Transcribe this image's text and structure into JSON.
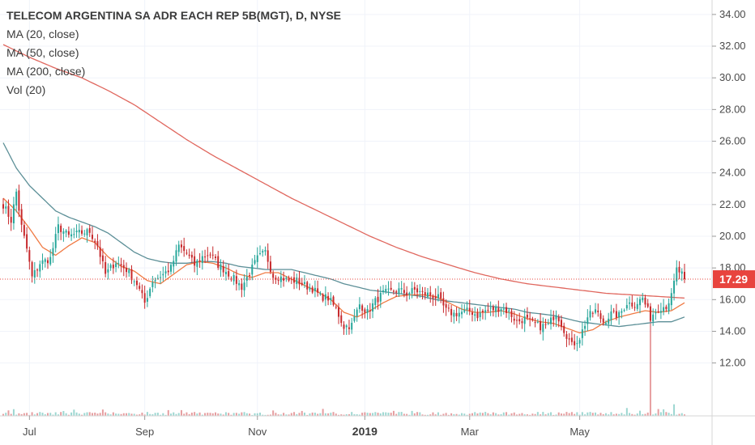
{
  "legend": {
    "title": "TELECOM ARGENTINA SA ADR EACH REP 5B(MGT), D, NYSE",
    "ma20": "MA (20, close)",
    "ma50": "MA (50, close)",
    "ma200": "MA (200, close)",
    "vol": "Vol (20)"
  },
  "colors": {
    "up": "#26a69a",
    "down": "#c7292c",
    "ma20": "#f07a43",
    "ma50": "#5c8f97",
    "ma200": "#e0675e",
    "price_tag": "#e8443e"
  },
  "chart_data": {
    "type": "candlestick",
    "y_ticks": [
      "12.00",
      "14.00",
      "16.00",
      "18.00",
      "20.00",
      "22.00",
      "24.00",
      "26.00",
      "28.00",
      "30.00",
      "32.00",
      "34.00"
    ],
    "ylim": [
      10.5,
      34.3
    ],
    "x_ticks": [
      {
        "label": "Jul",
        "i": 10,
        "bold": false
      },
      {
        "label": "Sep",
        "i": 54,
        "bold": false
      },
      {
        "label": "Nov",
        "i": 97,
        "bold": false
      },
      {
        "label": "2019",
        "i": 138,
        "bold": true
      },
      {
        "label": "Mar",
        "i": 178,
        "bold": false
      },
      {
        "label": "May",
        "i": 220,
        "bold": false
      }
    ],
    "last_price": "17.29",
    "last_price_value": 17.29,
    "price_anchors": [
      [
        0,
        22.0
      ],
      [
        3,
        21.0
      ],
      [
        5,
        22.8
      ],
      [
        7,
        20.6
      ],
      [
        9,
        19.2
      ],
      [
        11,
        17.4
      ],
      [
        14,
        18.3
      ],
      [
        18,
        18.6
      ],
      [
        21,
        20.6
      ],
      [
        25,
        20.0
      ],
      [
        29,
        20.2
      ],
      [
        33,
        20.3
      ],
      [
        36,
        19.4
      ],
      [
        39,
        17.6
      ],
      [
        43,
        18.4
      ],
      [
        47,
        17.9
      ],
      [
        51,
        17.0
      ],
      [
        54,
        15.8
      ],
      [
        57,
        17.2
      ],
      [
        61,
        17.6
      ],
      [
        64,
        18.0
      ],
      [
        67,
        19.4
      ],
      [
        70,
        18.9
      ],
      [
        73,
        18.2
      ],
      [
        76,
        18.7
      ],
      [
        79,
        18.9
      ],
      [
        82,
        18.2
      ],
      [
        85,
        17.8
      ],
      [
        88,
        17.3
      ],
      [
        91,
        16.8
      ],
      [
        94,
        17.7
      ],
      [
        97,
        18.6
      ],
      [
        100,
        19.0
      ],
      [
        103,
        17.5
      ],
      [
        106,
        17.4
      ],
      [
        109,
        17.2
      ],
      [
        112,
        17.2
      ],
      [
        115,
        16.9
      ],
      [
        118,
        16.7
      ],
      [
        121,
        16.2
      ],
      [
        124,
        16.1
      ],
      [
        127,
        15.4
      ],
      [
        130,
        14.3
      ],
      [
        133,
        14.4
      ],
      [
        136,
        15.7
      ],
      [
        139,
        15.2
      ],
      [
        142,
        15.9
      ],
      [
        145,
        16.4
      ],
      [
        148,
        16.5
      ],
      [
        151,
        16.6
      ],
      [
        154,
        16.4
      ],
      [
        157,
        16.6
      ],
      [
        160,
        16.4
      ],
      [
        163,
        16.3
      ],
      [
        166,
        16.1
      ],
      [
        169,
        15.3
      ],
      [
        172,
        15.1
      ],
      [
        175,
        15.2
      ],
      [
        178,
        15.3
      ],
      [
        181,
        15.0
      ],
      [
        184,
        15.3
      ],
      [
        187,
        15.4
      ],
      [
        190,
        15.5
      ],
      [
        193,
        15.2
      ],
      [
        196,
        14.6
      ],
      [
        199,
        14.8
      ],
      [
        202,
        14.5
      ],
      [
        205,
        14.3
      ],
      [
        208,
        14.4
      ],
      [
        211,
        15.2
      ],
      [
        214,
        14.1
      ],
      [
        217,
        13.1
      ],
      [
        220,
        13.6
      ],
      [
        223,
        14.9
      ],
      [
        226,
        15.3
      ],
      [
        229,
        14.6
      ],
      [
        232,
        15.1
      ],
      [
        235,
        15.0
      ],
      [
        238,
        15.8
      ],
      [
        241,
        15.7
      ],
      [
        244,
        16.1
      ],
      [
        247,
        14.9
      ],
      [
        250,
        15.5
      ],
      [
        253,
        15.6
      ],
      [
        255,
        16.2
      ],
      [
        257,
        17.9
      ],
      [
        259,
        17.6
      ],
      [
        260,
        17.29
      ]
    ],
    "ma20_anchors": [
      [
        0,
        22.4
      ],
      [
        5,
        21.6
      ],
      [
        10,
        20.5
      ],
      [
        15,
        19.3
      ],
      [
        20,
        18.8
      ],
      [
        25,
        19.4
      ],
      [
        30,
        19.9
      ],
      [
        35,
        19.6
      ],
      [
        40,
        18.7
      ],
      [
        45,
        18.1
      ],
      [
        50,
        17.8
      ],
      [
        55,
        17.2
      ],
      [
        60,
        17.0
      ],
      [
        65,
        17.6
      ],
      [
        70,
        18.2
      ],
      [
        75,
        18.4
      ],
      [
        80,
        18.3
      ],
      [
        85,
        18.0
      ],
      [
        90,
        17.6
      ],
      [
        95,
        17.4
      ],
      [
        100,
        17.7
      ],
      [
        105,
        17.7
      ],
      [
        110,
        17.3
      ],
      [
        115,
        16.9
      ],
      [
        120,
        16.5
      ],
      [
        125,
        16.0
      ],
      [
        130,
        15.2
      ],
      [
        135,
        14.9
      ],
      [
        140,
        15.3
      ],
      [
        145,
        15.8
      ],
      [
        150,
        16.2
      ],
      [
        155,
        16.3
      ],
      [
        160,
        16.3
      ],
      [
        165,
        16.2
      ],
      [
        170,
        15.8
      ],
      [
        175,
        15.4
      ],
      [
        180,
        15.2
      ],
      [
        185,
        15.2
      ],
      [
        190,
        15.3
      ],
      [
        195,
        15.1
      ],
      [
        200,
        14.8
      ],
      [
        205,
        14.6
      ],
      [
        210,
        14.5
      ],
      [
        215,
        14.2
      ],
      [
        220,
        13.9
      ],
      [
        225,
        14.1
      ],
      [
        230,
        14.6
      ],
      [
        235,
        14.9
      ],
      [
        240,
        15.1
      ],
      [
        245,
        15.3
      ],
      [
        250,
        15.2
      ],
      [
        255,
        15.3
      ],
      [
        260,
        15.8
      ]
    ],
    "ma50_anchors": [
      [
        0,
        25.9
      ],
      [
        5,
        24.3
      ],
      [
        10,
        23.2
      ],
      [
        15,
        22.4
      ],
      [
        20,
        21.6
      ],
      [
        25,
        21.2
      ],
      [
        30,
        20.9
      ],
      [
        35,
        20.6
      ],
      [
        40,
        20.2
      ],
      [
        45,
        19.6
      ],
      [
        50,
        19.0
      ],
      [
        55,
        18.6
      ],
      [
        60,
        18.4
      ],
      [
        65,
        18.3
      ],
      [
        70,
        18.3
      ],
      [
        75,
        18.4
      ],
      [
        80,
        18.4
      ],
      [
        85,
        18.3
      ],
      [
        90,
        18.1
      ],
      [
        95,
        18.0
      ],
      [
        100,
        17.9
      ],
      [
        105,
        17.9
      ],
      [
        110,
        17.9
      ],
      [
        115,
        17.7
      ],
      [
        120,
        17.5
      ],
      [
        125,
        17.3
      ],
      [
        130,
        17.0
      ],
      [
        135,
        16.8
      ],
      [
        140,
        16.6
      ],
      [
        145,
        16.5
      ],
      [
        150,
        16.4
      ],
      [
        155,
        16.3
      ],
      [
        160,
        16.2
      ],
      [
        165,
        16.0
      ],
      [
        170,
        15.9
      ],
      [
        175,
        15.8
      ],
      [
        180,
        15.7
      ],
      [
        185,
        15.6
      ],
      [
        190,
        15.5
      ],
      [
        195,
        15.4
      ],
      [
        200,
        15.2
      ],
      [
        205,
        15.1
      ],
      [
        210,
        15.0
      ],
      [
        215,
        14.8
      ],
      [
        220,
        14.6
      ],
      [
        225,
        14.5
      ],
      [
        230,
        14.4
      ],
      [
        235,
        14.3
      ],
      [
        240,
        14.4
      ],
      [
        245,
        14.5
      ],
      [
        250,
        14.6
      ],
      [
        255,
        14.6
      ],
      [
        260,
        14.9
      ]
    ],
    "ma200_anchors": [
      [
        0,
        32.1
      ],
      [
        10,
        31.3
      ],
      [
        20,
        30.6
      ],
      [
        30,
        30.0
      ],
      [
        40,
        29.2
      ],
      [
        50,
        28.3
      ],
      [
        60,
        27.2
      ],
      [
        70,
        26.1
      ],
      [
        80,
        25.1
      ],
      [
        90,
        24.2
      ],
      [
        100,
        23.3
      ],
      [
        110,
        22.4
      ],
      [
        120,
        21.6
      ],
      [
        130,
        20.8
      ],
      [
        140,
        20.0
      ],
      [
        150,
        19.3
      ],
      [
        160,
        18.7
      ],
      [
        170,
        18.2
      ],
      [
        180,
        17.7
      ],
      [
        190,
        17.3
      ],
      [
        200,
        17.0
      ],
      [
        210,
        16.8
      ],
      [
        220,
        16.6
      ],
      [
        230,
        16.4
      ],
      [
        240,
        16.3
      ],
      [
        250,
        16.2
      ],
      [
        260,
        16.1
      ]
    ],
    "volume_spike": {
      "i": 247,
      "value": 1.0
    },
    "volume_second": {
      "i": 256,
      "value": 0.35
    }
  }
}
